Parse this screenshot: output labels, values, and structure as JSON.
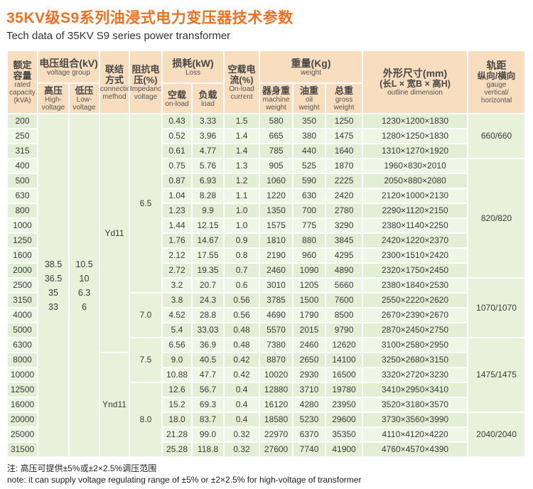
{
  "page": {
    "title_cn": "35KV级S9系列油浸式电力变压器技术参数",
    "title_en": "Tech data of 35KV S9 series power transformer",
    "note_cn": "注: 高压可提供±5%或±2×2.5%调压范围",
    "note_en": "note: it can supply voltage regulating range of ±5% or ±2×2.5% for high-voltage of transformer"
  },
  "colors": {
    "title": "#ee7020",
    "header_bg": "#f8ddbe",
    "row_odd": "#e3efd5",
    "row_even": "#eef7e6",
    "merged_bg": "#e8f2da",
    "border": "#ffffff",
    "body_text": "#3a3a3a"
  },
  "header": {
    "capacity": {
      "cn1": "额定",
      "cn2": "容量",
      "en1": "rated",
      "en2": "capacity",
      "en3": "(kVA)"
    },
    "voltage_group": {
      "cn": "电压组合(kV)",
      "en": "voltage group"
    },
    "hv": {
      "cn": "高压",
      "en1": "High-",
      "en2": "voltage"
    },
    "lv": {
      "cn": "低压",
      "en1": "Low-",
      "en2": "voltage"
    },
    "connection": {
      "cn1": "联结",
      "cn2": "方式",
      "en1": "connection",
      "en2": "mefhod"
    },
    "impedance": {
      "cn1": "阻抗电",
      "cn2": "压(%)",
      "en1": "Impedance",
      "en2": "voltage"
    },
    "loss": {
      "cn": "损耗(kW)",
      "en": "Loss"
    },
    "no_load": {
      "cn": "空载",
      "en": "on-load"
    },
    "load": {
      "cn": "负载",
      "en": "load"
    },
    "current": {
      "cn1": "空载电",
      "cn2": "流(%)",
      "en1": "On-load",
      "en2": "current"
    },
    "weight": {
      "cn": "重量(Kg)",
      "en": "weight"
    },
    "machine": {
      "cn": "器身重",
      "en1": "machine",
      "en2": "weight"
    },
    "oil": {
      "cn": "油重",
      "en1": "oil",
      "en2": "weight"
    },
    "gross": {
      "cn": "总重",
      "en1": "gross",
      "en2": "weight"
    },
    "outline": {
      "cn1": "外形尺寸(mm)",
      "cn2": "(长L × 宽B × 高H)",
      "en": "outline dimension"
    },
    "gauge": {
      "cn1": "轨距",
      "cn2": "纵向/横向",
      "en1": "gauge",
      "en2": "vertical/",
      "en3": "horizontal"
    }
  },
  "table": {
    "hv_values": [
      "38.5",
      "36.5",
      "35",
      "33"
    ],
    "lv_values": [
      "10.5",
      "10",
      "6.3",
      "6"
    ],
    "connection_spans": [
      {
        "label": "Yd11",
        "start": 1,
        "span": 16
      },
      {
        "label": "Ynd11",
        "start": 17,
        "span": 7
      }
    ],
    "impedance_spans": [
      {
        "label": "6.5",
        "start": 1,
        "span": 12
      },
      {
        "label": "7.0",
        "start": 13,
        "span": 3
      },
      {
        "label": "7.5",
        "start": 16,
        "span": 3
      },
      {
        "label": "8.0",
        "start": 19,
        "span": 5
      }
    ],
    "gauge_spans": [
      {
        "label": "660/660",
        "start": 1,
        "span": 3
      },
      {
        "label": "820/820",
        "start": 4,
        "span": 8
      },
      {
        "label": "1070/1070",
        "start": 12,
        "span": 4
      },
      {
        "label": "1475/1475",
        "start": 16,
        "span": 5
      },
      {
        "label": "2040/2040",
        "start": 21,
        "span": 3
      }
    ],
    "rows": [
      {
        "capacity": "200",
        "no_load_loss": "0.43",
        "load_loss": "3.33",
        "current": "1.5",
        "machine": "580",
        "oil": "350",
        "gross": "1250",
        "dim": "1230×1200×1830"
      },
      {
        "capacity": "250",
        "no_load_loss": "0.52",
        "load_loss": "3.96",
        "current": "1.4",
        "machine": "665",
        "oil": "380",
        "gross": "1475",
        "dim": "1280×1250×1830"
      },
      {
        "capacity": "315",
        "no_load_loss": "0.61",
        "load_loss": "4.77",
        "current": "1.4",
        "machine": "785",
        "oil": "440",
        "gross": "1640",
        "dim": "1310×1270×1920"
      },
      {
        "capacity": "400",
        "no_load_loss": "0.75",
        "load_loss": "5.76",
        "current": "1.3",
        "machine": "905",
        "oil": "525",
        "gross": "1870",
        "dim": "1960×830×2010"
      },
      {
        "capacity": "500",
        "no_load_loss": "0.87",
        "load_loss": "6.93",
        "current": "1.2",
        "machine": "1060",
        "oil": "590",
        "gross": "2225",
        "dim": "2050×880×2080"
      },
      {
        "capacity": "630",
        "no_load_loss": "1.04",
        "load_loss": "8.28",
        "current": "1.1",
        "machine": "1220",
        "oil": "630",
        "gross": "2420",
        "dim": "2120×1000×2130"
      },
      {
        "capacity": "800",
        "no_load_loss": "1.23",
        "load_loss": "9.9",
        "current": "1.0",
        "machine": "1350",
        "oil": "700",
        "gross": "2780",
        "dim": "2290×1120×2150"
      },
      {
        "capacity": "1000",
        "no_load_loss": "1.44",
        "load_loss": "12.15",
        "current": "1.0",
        "machine": "1575",
        "oil": "775",
        "gross": "3290",
        "dim": "2380×1140×2250"
      },
      {
        "capacity": "1250",
        "no_load_loss": "1.76",
        "load_loss": "14.67",
        "current": "0.9",
        "machine": "1810",
        "oil": "880",
        "gross": "3845",
        "dim": "2420×1220×2370"
      },
      {
        "capacity": "1600",
        "no_load_loss": "2.12",
        "load_loss": "17.55",
        "current": "0.8",
        "machine": "2190",
        "oil": "960",
        "gross": "4295",
        "dim": "2300×1510×2420"
      },
      {
        "capacity": "2000",
        "no_load_loss": "2.72",
        "load_loss": "19.35",
        "current": "0.7",
        "machine": "2460",
        "oil": "1090",
        "gross": "4890",
        "dim": "2320×1750×2450"
      },
      {
        "capacity": "2500",
        "no_load_loss": "3.2",
        "load_loss": "20.7",
        "current": "0.6",
        "machine": "3010",
        "oil": "1205",
        "gross": "5660",
        "dim": "2380×1840×2530"
      },
      {
        "capacity": "3150",
        "no_load_loss": "3.8",
        "load_loss": "24.3",
        "current": "0.56",
        "machine": "3785",
        "oil": "1500",
        "gross": "7600",
        "dim": "2550×2220×2620"
      },
      {
        "capacity": "4000",
        "no_load_loss": "4.52",
        "load_loss": "28.8",
        "current": "0.56",
        "machine": "4690",
        "oil": "1790",
        "gross": "8500",
        "dim": "2670×2390×2670"
      },
      {
        "capacity": "5000",
        "no_load_loss": "5.4",
        "load_loss": "33.03",
        "current": "0.48",
        "machine": "5570",
        "oil": "2015",
        "gross": "9790",
        "dim": "2870×2450×2750"
      },
      {
        "capacity": "6300",
        "no_load_loss": "6.56",
        "load_loss": "36.9",
        "current": "0.48",
        "machine": "7380",
        "oil": "2460",
        "gross": "12620",
        "dim": "3100×2580×2950"
      },
      {
        "capacity": "8000",
        "no_load_loss": "9.0",
        "load_loss": "40.5",
        "current": "0.42",
        "machine": "8870",
        "oil": "2650",
        "gross": "14100",
        "dim": "3250×2680×3150"
      },
      {
        "capacity": "10000",
        "no_load_loss": "10.88",
        "load_loss": "47.7",
        "current": "0.42",
        "machine": "10020",
        "oil": "2930",
        "gross": "16500",
        "dim": "3320×2720×3230"
      },
      {
        "capacity": "12500",
        "no_load_loss": "12.6",
        "load_loss": "56.7",
        "current": "0.4",
        "machine": "12880",
        "oil": "3710",
        "gross": "19780",
        "dim": "3410×2950×3410"
      },
      {
        "capacity": "16000",
        "no_load_loss": "15.2",
        "load_loss": "69.3",
        "current": "0.4",
        "machine": "16120",
        "oil": "4280",
        "gross": "23950",
        "dim": "3520×3180×3570"
      },
      {
        "capacity": "20000",
        "no_load_loss": "18.0",
        "load_loss": "83.7",
        "current": "0.4",
        "machine": "18580",
        "oil": "5230",
        "gross": "29600",
        "dim": "3730×3560×3990"
      },
      {
        "capacity": "25000",
        "no_load_loss": "21.28",
        "load_loss": "99.0",
        "current": "0.32",
        "machine": "22970",
        "oil": "6370",
        "gross": "35350",
        "dim": "4110×4120×4220"
      },
      {
        "capacity": "31500",
        "no_load_loss": "25.28",
        "load_loss": "118.8",
        "current": "0.32",
        "machine": "27600",
        "oil": "7740",
        "gross": "41900",
        "dim": "4760×4570×4390"
      }
    ]
  }
}
